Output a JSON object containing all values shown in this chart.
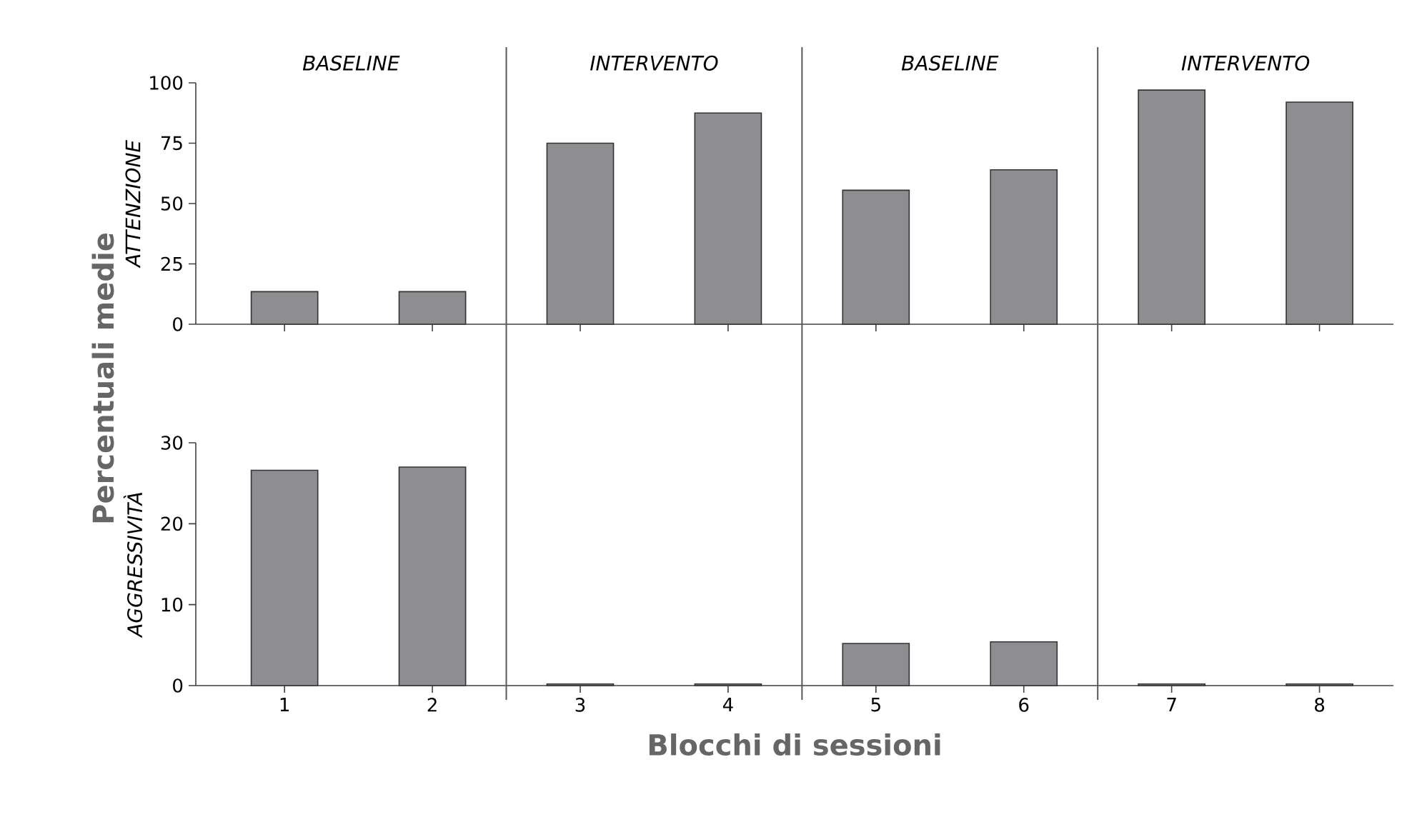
{
  "chart_data": [
    {
      "type": "bar",
      "ylabel": "ATTENZIONE",
      "categories": [
        null,
        null,
        null,
        null,
        null,
        null,
        null,
        null
      ],
      "values": [
        13.5,
        13.5,
        75,
        87.5,
        55.5,
        64,
        97,
        92
      ],
      "color": "#8e8e92",
      "ylim": [
        0,
        100
      ],
      "yticks": [
        0,
        25,
        50,
        75,
        100
      ],
      "tick_labels": "y",
      "annotations": [
        "BASELINE",
        "INTERVENTO",
        "BASELINE",
        "INTERVENTO",
        "Percentuali medie"
      ]
    },
    {
      "type": "bar",
      "ylabel": "AGGRESSIVITÀ",
      "xlabel": "Blocchi di sessioni",
      "x": [
        1,
        2,
        3,
        4,
        5,
        6,
        7,
        8
      ],
      "values": [
        26.6,
        27,
        0.2,
        0.2,
        5.2,
        5.4,
        0.2,
        0.2
      ],
      "color": "#8e8e92",
      "xlim": [
        0.4,
        8.5
      ],
      "ylim": [
        0,
        30
      ],
      "yticks": [
        0,
        10,
        20,
        30
      ],
      "xticks": [
        1,
        2,
        3,
        4,
        5,
        6,
        7,
        8
      ],
      "ref_lines": [
        {
          "axis": "x",
          "value": 2.5
        },
        {
          "axis": "x",
          "value": 4.5
        },
        {
          "axis": "x",
          "value": 6.5
        }
      ]
    }
  ]
}
